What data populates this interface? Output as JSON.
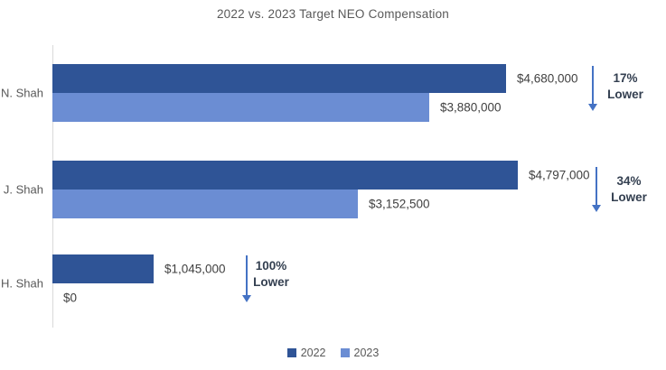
{
  "chart_data": {
    "type": "bar",
    "orientation": "horizontal",
    "title": "2022 vs. 2023 Target NEO Compensation",
    "categories": [
      "N. Shah",
      "J. Shah",
      "H. Shah"
    ],
    "series": [
      {
        "name": "2022",
        "color": "#2F5496",
        "values": [
          4680000,
          4797000,
          1045000
        ],
        "labels": [
          "$4,680,000",
          "$4,797,000",
          "$1,045,000"
        ]
      },
      {
        "name": "2023",
        "color": "#6B8DD3",
        "values": [
          3880000,
          3152500,
          0
        ],
        "labels": [
          "$3,880,000",
          "$3,152,500",
          "$0"
        ]
      }
    ],
    "annotations": [
      {
        "pct": "17%",
        "word": "Lower"
      },
      {
        "pct": "34%",
        "word": "Lower"
      },
      {
        "pct": "100%",
        "word": "Lower"
      }
    ],
    "legend_position": "bottom",
    "grid": false,
    "x_axis_labels_visible": false,
    "colors": {
      "arrow": "#4472C4",
      "title_text": "#595959",
      "category_text": "#595959",
      "value_label_text": "#404040",
      "annotation_text": "#333F50",
      "axis_line": "#D9D9D9"
    }
  }
}
